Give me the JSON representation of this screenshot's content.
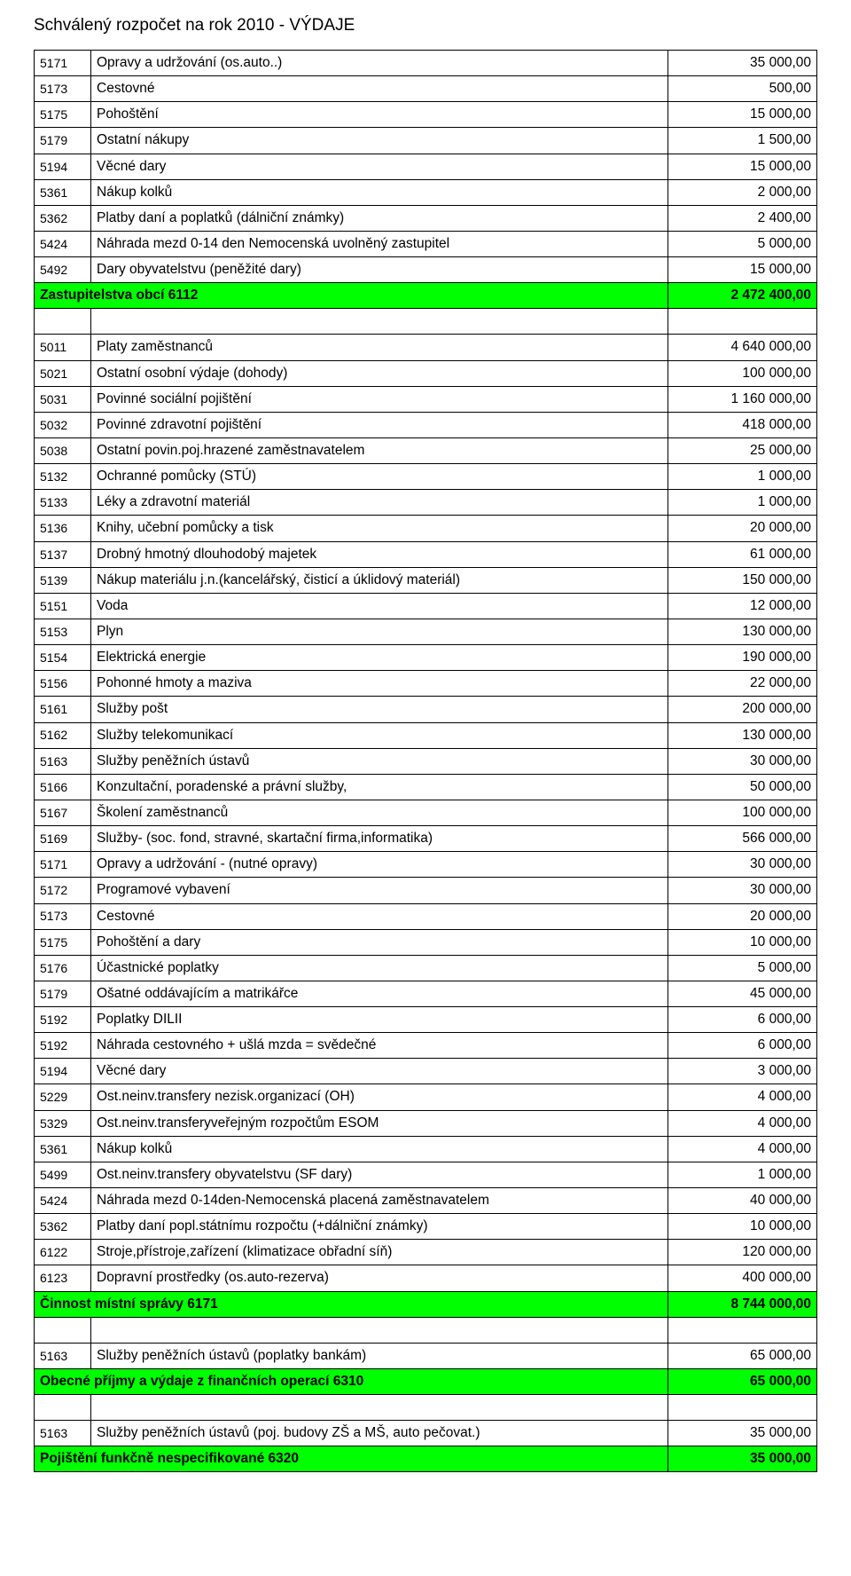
{
  "title": "Schválený rozpočet na rok 2010 - VÝDAJE",
  "colors": {
    "section_bg": "#00ff00",
    "border": "#000000",
    "text": "#000000",
    "bg": "#ffffff"
  },
  "rows": [
    {
      "type": "row",
      "code": "5171",
      "desc": "Opravy a udržování (os.auto..)",
      "amount": "35 000,00"
    },
    {
      "type": "row",
      "code": "5173",
      "desc": "Cestovné",
      "amount": "500,00"
    },
    {
      "type": "row",
      "code": "5175",
      "desc": "Pohoštění",
      "amount": "15 000,00"
    },
    {
      "type": "row",
      "code": "5179",
      "desc": "Ostatní nákupy",
      "amount": "1 500,00"
    },
    {
      "type": "row",
      "code": "5194",
      "desc": "Věcné dary",
      "amount": "15 000,00"
    },
    {
      "type": "row",
      "code": "5361",
      "desc": "Nákup kolků",
      "amount": "2 000,00"
    },
    {
      "type": "row",
      "code": "5362",
      "desc": "Platby daní a poplatků (dálniční známky)",
      "amount": "2 400,00"
    },
    {
      "type": "row",
      "code": "5424",
      "desc": "Náhrada mezd 0-14 den Nemocenská uvolněný zastupitel",
      "amount": "5 000,00"
    },
    {
      "type": "row",
      "code": "5492",
      "desc": "Dary obyvatelstvu (peněžité dary)",
      "amount": "15 000,00"
    },
    {
      "type": "section",
      "desc": "Zastupitelstva obcí  6112",
      "amount": "2 472 400,00"
    },
    {
      "type": "spacer"
    },
    {
      "type": "row",
      "code": "5011",
      "desc": "Platy zaměstnanců",
      "amount": "4 640 000,00"
    },
    {
      "type": "row",
      "code": "5021",
      "desc": "Ostatní osobní výdaje (dohody)",
      "amount": "100 000,00"
    },
    {
      "type": "row",
      "code": "5031",
      "desc": "Povinné sociální pojištění",
      "amount": "1 160 000,00"
    },
    {
      "type": "row",
      "code": "5032",
      "desc": "Povinné zdravotní pojištění",
      "amount": "418 000,00"
    },
    {
      "type": "row",
      "code": "5038",
      "desc": "Ostatní povin.poj.hrazené zaměstnavatelem",
      "amount": "25 000,00"
    },
    {
      "type": "row",
      "code": "5132",
      "desc": "Ochranné pomůcky (STÚ)",
      "amount": "1 000,00"
    },
    {
      "type": "row",
      "code": "5133",
      "desc": "Léky a zdravotní materiál",
      "amount": "1 000,00"
    },
    {
      "type": "row",
      "code": "5136",
      "desc": "Knihy, učební pomůcky a tisk",
      "amount": "20 000,00"
    },
    {
      "type": "row",
      "code": "5137",
      "desc": "Drobný hmotný dlouhodobý majetek",
      "amount": "61 000,00"
    },
    {
      "type": "row",
      "code": "5139",
      "desc": "Nákup materiálu j.n.(kancelářský, čisticí a úklidový materiál)",
      "amount": "150 000,00"
    },
    {
      "type": "row",
      "code": "5151",
      "desc": "Voda",
      "amount": "12 000,00"
    },
    {
      "type": "row",
      "code": "5153",
      "desc": "Plyn",
      "amount": "130 000,00"
    },
    {
      "type": "row",
      "code": "5154",
      "desc": "Elektrická energie",
      "amount": "190 000,00"
    },
    {
      "type": "row",
      "code": "5156",
      "desc": "Pohonné hmoty a maziva",
      "amount": "22 000,00"
    },
    {
      "type": "row",
      "code": "5161",
      "desc": "Služby pošt",
      "amount": "200 000,00"
    },
    {
      "type": "row",
      "code": "5162",
      "desc": "Služby telekomunikací",
      "amount": "130 000,00"
    },
    {
      "type": "row",
      "code": "5163",
      "desc": "Služby peněžních ústavů",
      "amount": "30 000,00"
    },
    {
      "type": "row",
      "code": "5166",
      "desc": "Konzultační, poradenské a právní služby,",
      "amount": "50 000,00"
    },
    {
      "type": "row",
      "code": "5167",
      "desc": "Školení zaměstnanců",
      "amount": "100 000,00"
    },
    {
      "type": "row",
      "code": "5169",
      "desc": "Služby- (soc. fond, stravné, skartační firma,informatika)",
      "amount": "566 000,00"
    },
    {
      "type": "row",
      "code": "5171",
      "desc": "Opravy a udržování - (nutné opravy)",
      "amount": "30 000,00"
    },
    {
      "type": "row",
      "code": "5172",
      "desc": "Programové vybavení",
      "amount": "30 000,00"
    },
    {
      "type": "row",
      "code": "5173",
      "desc": "Cestovné",
      "amount": "20 000,00"
    },
    {
      "type": "row",
      "code": "5175",
      "desc": "Pohoštění a dary",
      "amount": "10 000,00"
    },
    {
      "type": "row",
      "code": "5176",
      "desc": "Účastnické poplatky",
      "amount": "5 000,00"
    },
    {
      "type": "row",
      "code": "5179",
      "desc": "Ošatné oddávajícím a matrikářce",
      "amount": "45 000,00"
    },
    {
      "type": "row",
      "code": "5192",
      "desc": "Poplatky DILII",
      "amount": "6 000,00"
    },
    {
      "type": "row",
      "code": "5192",
      "desc": "Náhrada cestovného + ušlá mzda = svědečné",
      "amount": "6 000,00"
    },
    {
      "type": "row",
      "code": "5194",
      "desc": "Věcné dary",
      "amount": "3 000,00"
    },
    {
      "type": "row",
      "code": "5229",
      "desc": "Ost.neinv.transfery nezisk.organizací (OH)",
      "amount": "4 000,00"
    },
    {
      "type": "row",
      "code": "5329",
      "desc": "Ost.neinv.transferyveřejným rozpočtům ESOM",
      "amount": "4 000,00"
    },
    {
      "type": "row",
      "code": "5361",
      "desc": "Nákup kolků",
      "amount": "4 000,00"
    },
    {
      "type": "row",
      "code": "5499",
      "desc": "Ost.neinv.transfery obyvatelstvu (SF dary)",
      "amount": "1 000,00"
    },
    {
      "type": "row",
      "code": "5424",
      "desc": "Náhrada mezd 0-14den-Nemocenská placená zaměstnavatelem",
      "amount": "40 000,00"
    },
    {
      "type": "row",
      "code": "5362",
      "desc": "Platby daní popl.státnímu rozpočtu (+dálniční známky)",
      "amount": "10 000,00"
    },
    {
      "type": "row",
      "code": "6122",
      "desc": "Stroje,přístroje,zařízení (klimatizace obřadní síň)",
      "amount": "120 000,00"
    },
    {
      "type": "row",
      "code": "6123",
      "desc": "Dopravní prostředky (os.auto-rezerva)",
      "amount": "400 000,00"
    },
    {
      "type": "section",
      "desc": "Činnost místní správy 6171",
      "amount": "8 744 000,00"
    },
    {
      "type": "spacer"
    },
    {
      "type": "row",
      "code": "5163",
      "desc": "Služby peněžních ústavů (poplatky bankám)",
      "amount": "65 000,00"
    },
    {
      "type": "section",
      "desc": "Obecné příjmy a výdaje z finančních operací  6310",
      "amount": "65 000,00"
    },
    {
      "type": "spacer"
    },
    {
      "type": "row",
      "code": "5163",
      "desc": "Služby peněžních ústavů (poj. budovy ZŠ a MŠ, auto pečovat.)",
      "amount": "35 000,00"
    },
    {
      "type": "section",
      "desc": "Pojištění funkčně nespecifikované 6320",
      "amount": "35 000,00"
    }
  ]
}
